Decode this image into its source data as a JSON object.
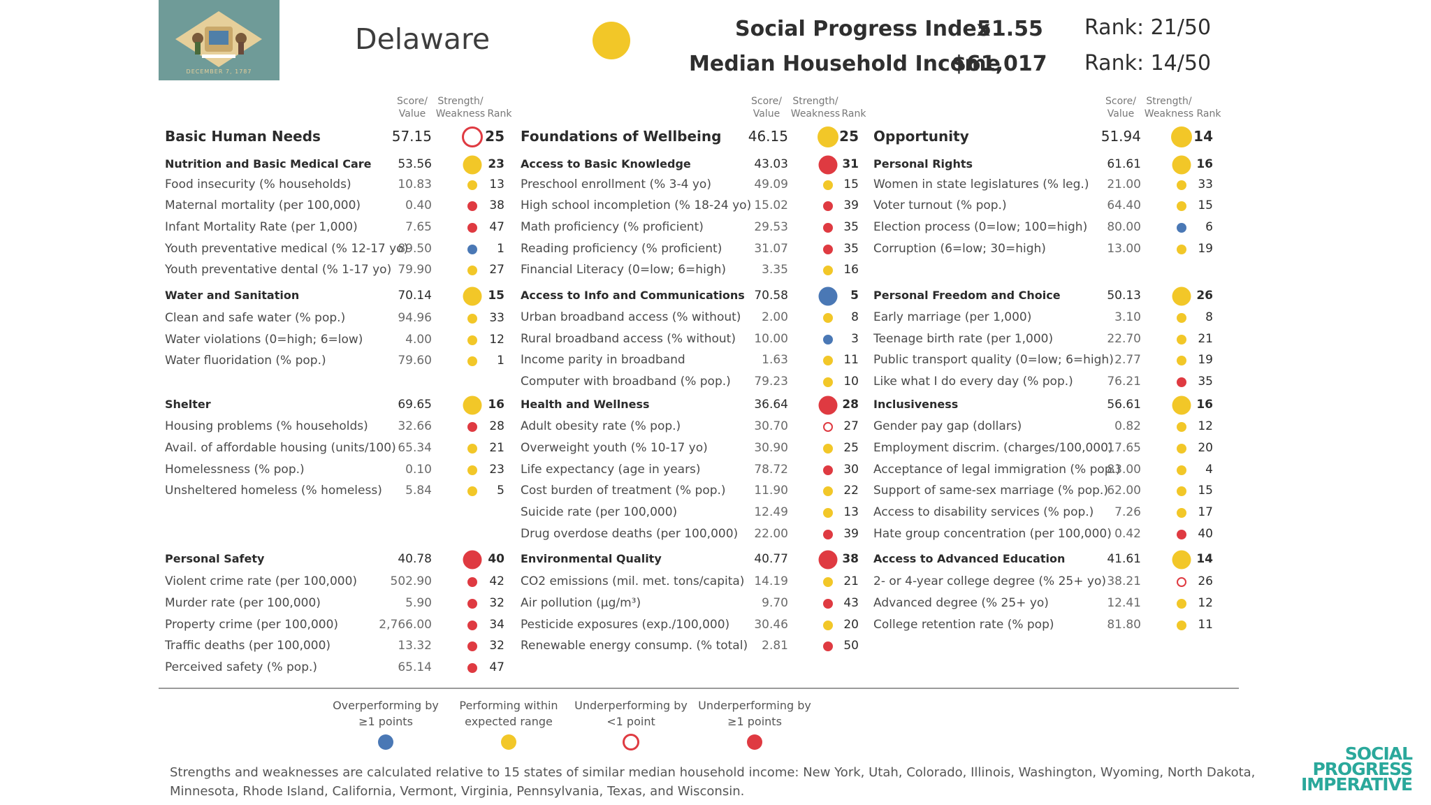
{
  "header": {
    "state": "Delaware",
    "spi_label": "Social Progress Index",
    "spi_score": "51.55",
    "spi_rank": "Rank: 21/50",
    "income_label": "Median Household Income",
    "income_value": "$61,017",
    "income_rank": "Rank: 14/50",
    "flag_year": "DECEMBER 7, 1787"
  },
  "column_headers": {
    "score": [
      "Score/",
      "Value"
    ],
    "strength": [
      "Strength/",
      "Weakness"
    ],
    "rank": "Rank"
  },
  "colors": {
    "blue": "#4a78b5",
    "yellow": "#f2c728",
    "red": "#df3a41"
  },
  "columns": [
    {
      "rows": [
        {
          "type": "dim",
          "label": "Basic Human Needs",
          "value": "57.15",
          "status": "ring",
          "rank": "25"
        },
        {
          "type": "sec",
          "label": "Nutrition and Basic Medical Care",
          "value": "53.56",
          "status": "yellow",
          "rank": "23"
        },
        {
          "type": "ind",
          "label": "Food insecurity (% households)",
          "value": "10.83",
          "status": "yellow",
          "rank": "13"
        },
        {
          "type": "ind",
          "label": "Maternal mortality (per 100,000)",
          "value": "0.40",
          "status": "red",
          "rank": "38"
        },
        {
          "type": "ind",
          "label": "Infant Mortality Rate (per 1,000)",
          "value": "7.65",
          "status": "red",
          "rank": "47"
        },
        {
          "type": "ind",
          "label": "Youth preventative medical (% 12-17 yo)",
          "value": "89.50",
          "status": "blue",
          "rank": "1"
        },
        {
          "type": "ind",
          "label": "Youth preventative dental (% 1-17 yo)",
          "value": "79.90",
          "status": "yellow",
          "rank": "27"
        },
        {
          "type": "sec",
          "label": "Water and Sanitation",
          "value": "70.14",
          "status": "yellow",
          "rank": "15"
        },
        {
          "type": "ind",
          "label": "Clean and safe water (% pop.)",
          "value": "94.96",
          "status": "yellow",
          "rank": "33"
        },
        {
          "type": "ind",
          "label": "Water violations (0=high; 6=low)",
          "value": "4.00",
          "status": "yellow",
          "rank": "12"
        },
        {
          "type": "ind",
          "label": "Water fluoridation (% pop.)",
          "value": "79.60",
          "status": "yellow",
          "rank": "1"
        },
        {
          "type": "sec",
          "label": "Shelter",
          "value": "69.65",
          "status": "yellow",
          "rank": "16"
        },
        {
          "type": "ind",
          "label": "Housing problems (% households)",
          "value": "32.66",
          "status": "red",
          "rank": "28"
        },
        {
          "type": "ind",
          "label": "Avail. of affordable housing (units/100)",
          "value": "65.34",
          "status": "yellow",
          "rank": "21"
        },
        {
          "type": "ind",
          "label": "Homelessness (% pop.)",
          "value": "0.10",
          "status": "yellow",
          "rank": "23"
        },
        {
          "type": "ind",
          "label": "Unsheltered homeless (% homeless)",
          "value": "5.84",
          "status": "yellow",
          "rank": "5"
        },
        {
          "type": "sec",
          "label": "Personal Safety",
          "value": "40.78",
          "status": "red",
          "rank": "40"
        },
        {
          "type": "ind",
          "label": "Violent crime rate (per 100,000)",
          "value": "502.90",
          "status": "red",
          "rank": "42"
        },
        {
          "type": "ind",
          "label": "Murder rate (per 100,000)",
          "value": "5.90",
          "status": "red",
          "rank": "32"
        },
        {
          "type": "ind",
          "label": "Property crime (per 100,000)",
          "value": "2,766.00",
          "status": "red",
          "rank": "34"
        },
        {
          "type": "ind",
          "label": "Traffic deaths (per 100,000)",
          "value": "13.32",
          "status": "red",
          "rank": "32"
        },
        {
          "type": "ind",
          "label": "Perceived safety (% pop.)",
          "value": "65.14",
          "status": "red",
          "rank": "47"
        }
      ]
    },
    {
      "rows": [
        {
          "type": "dim",
          "label": "Foundations of Wellbeing",
          "value": "46.15",
          "status": "yellow",
          "rank": "25"
        },
        {
          "type": "sec",
          "label": "Access to Basic Knowledge",
          "value": "43.03",
          "status": "red",
          "rank": "31"
        },
        {
          "type": "ind",
          "label": "Preschool enrollment (% 3-4 yo)",
          "value": "49.09",
          "status": "yellow",
          "rank": "15"
        },
        {
          "type": "ind",
          "label": "High school incompletion (% 18-24 yo)",
          "value": "15.02",
          "status": "red",
          "rank": "39"
        },
        {
          "type": "ind",
          "label": "Math proficiency (% proficient)",
          "value": "29.53",
          "status": "red",
          "rank": "35"
        },
        {
          "type": "ind",
          "label": "Reading proficiency (% proficient)",
          "value": "31.07",
          "status": "red",
          "rank": "35"
        },
        {
          "type": "ind",
          "label": "Financial Literacy (0=low; 6=high)",
          "value": "3.35",
          "status": "yellow",
          "rank": "16"
        },
        {
          "type": "sec",
          "label": "Access to Info and Communications",
          "value": "70.58",
          "status": "blue",
          "rank": "5"
        },
        {
          "type": "ind",
          "label": "Urban broadband access (% without)",
          "value": "2.00",
          "status": "yellow",
          "rank": "8"
        },
        {
          "type": "ind",
          "label": "Rural broadband access (% without)",
          "value": "10.00",
          "status": "blue",
          "rank": "3"
        },
        {
          "type": "ind",
          "label": "Income parity in broadband",
          "value": "1.63",
          "status": "yellow",
          "rank": "11"
        },
        {
          "type": "ind",
          "label": "Computer with broadband (% pop.)",
          "value": "79.23",
          "status": "yellow",
          "rank": "10"
        },
        {
          "type": "sec",
          "label": "Health and Wellness",
          "value": "36.64",
          "status": "red",
          "rank": "28"
        },
        {
          "type": "ind",
          "label": "Adult obesity rate (% pop.)",
          "value": "30.70",
          "status": "ring",
          "rank": "27"
        },
        {
          "type": "ind",
          "label": "Overweight youth (% 10-17 yo)",
          "value": "30.90",
          "status": "yellow",
          "rank": "25"
        },
        {
          "type": "ind",
          "label": "Life expectancy (age in years)",
          "value": "78.72",
          "status": "red",
          "rank": "30"
        },
        {
          "type": "ind",
          "label": "Cost burden of treatment (% pop.)",
          "value": "11.90",
          "status": "yellow",
          "rank": "22"
        },
        {
          "type": "ind",
          "label": "Suicide rate (per 100,000)",
          "value": "12.49",
          "status": "yellow",
          "rank": "13"
        },
        {
          "type": "ind",
          "label": "Drug overdose deaths (per 100,000)",
          "value": "22.00",
          "status": "red",
          "rank": "39"
        },
        {
          "type": "sec",
          "label": "Environmental Quality",
          "value": "40.77",
          "status": "red",
          "rank": "38"
        },
        {
          "type": "ind",
          "label": "CO2 emissions (mil. met. tons/capita)",
          "value": "14.19",
          "status": "yellow",
          "rank": "21"
        },
        {
          "type": "ind",
          "label": "Air pollution (µg/m³)",
          "value": "9.70",
          "status": "red",
          "rank": "43"
        },
        {
          "type": "ind",
          "label": "Pesticide exposures (exp./100,000)",
          "value": "30.46",
          "status": "yellow",
          "rank": "20"
        },
        {
          "type": "ind",
          "label": "Renewable energy consump. (% total)",
          "value": "2.81",
          "status": "red",
          "rank": "50"
        }
      ]
    },
    {
      "rows": [
        {
          "type": "dim",
          "label": "Opportunity",
          "value": "51.94",
          "status": "yellow",
          "rank": "14"
        },
        {
          "type": "sec",
          "label": "Personal Rights",
          "value": "61.61",
          "status": "yellow",
          "rank": "16"
        },
        {
          "type": "ind",
          "label": "Women in state legislatures (% leg.)",
          "value": "21.00",
          "status": "yellow",
          "rank": "33"
        },
        {
          "type": "ind",
          "label": "Voter turnout (% pop.)",
          "value": "64.40",
          "status": "yellow",
          "rank": "15"
        },
        {
          "type": "ind",
          "label": "Election process (0=low; 100=high)",
          "value": "80.00",
          "status": "blue",
          "rank": "6"
        },
        {
          "type": "ind",
          "label": "Corruption (6=low; 30=high)",
          "value": "13.00",
          "status": "yellow",
          "rank": "19"
        },
        {
          "type": "sec",
          "label": "Personal Freedom and Choice",
          "value": "50.13",
          "status": "yellow",
          "rank": "26"
        },
        {
          "type": "ind",
          "label": "Early marriage (per 1,000)",
          "value": "3.10",
          "status": "yellow",
          "rank": "8"
        },
        {
          "type": "ind",
          "label": "Teenage birth rate (per 1,000)",
          "value": "22.70",
          "status": "yellow",
          "rank": "21"
        },
        {
          "type": "ind",
          "label": "Public transport quality (0=low; 6=high)",
          "value": "2.77",
          "status": "yellow",
          "rank": "19"
        },
        {
          "type": "ind",
          "label": "Like what I do every day (% pop.)",
          "value": "76.21",
          "status": "red",
          "rank": "35"
        },
        {
          "type": "sec",
          "label": "Inclusiveness",
          "value": "56.61",
          "status": "yellow",
          "rank": "16"
        },
        {
          "type": "ind",
          "label": "Gender pay gap (dollars)",
          "value": "0.82",
          "status": "yellow",
          "rank": "12"
        },
        {
          "type": "ind",
          "label": "Employment discrim. (charges/100,000)",
          "value": "17.65",
          "status": "yellow",
          "rank": "20"
        },
        {
          "type": "ind",
          "label": "Acceptance of legal immigration (% pop.)",
          "value": "83.00",
          "status": "yellow",
          "rank": "4"
        },
        {
          "type": "ind",
          "label": "Support of same-sex marriage (% pop.)",
          "value": "62.00",
          "status": "yellow",
          "rank": "15"
        },
        {
          "type": "ind",
          "label": "Access to disability services (% pop.)",
          "value": "7.26",
          "status": "yellow",
          "rank": "17"
        },
        {
          "type": "ind",
          "label": "Hate group concentration (per 100,000)",
          "value": "0.42",
          "status": "red",
          "rank": "40"
        },
        {
          "type": "sec",
          "label": "Access to Advanced Education",
          "value": "41.61",
          "status": "yellow",
          "rank": "14"
        },
        {
          "type": "ind",
          "label": "2- or 4-year college degree (% 25+ yo)",
          "value": "38.21",
          "status": "ring",
          "rank": "26"
        },
        {
          "type": "ind",
          "label": "Advanced degree (% 25+ yo)",
          "value": "12.41",
          "status": "yellow",
          "rank": "12"
        },
        {
          "type": "ind",
          "label": "College retention rate (% pop)",
          "value": "81.80",
          "status": "yellow",
          "rank": "11"
        }
      ]
    }
  ],
  "legend": [
    {
      "label": "Overperforming by\n≥1 points",
      "status": "blue"
    },
    {
      "label": "Performing within\nexpected range",
      "status": "yellow"
    },
    {
      "label": "Underperforming by\n<1 point",
      "status": "ring"
    },
    {
      "label": "Underperforming by\n≥1 points",
      "status": "red"
    }
  ],
  "footnote": "Strengths and weaknesses are calculated relative to 15 states of similar median household income: New York, Utah, Colorado, Illinois, Washington, Wyoming, North Dakota, Minnesota, Rhode Island, California, Vermont, Virginia, Pennsylvania, Texas, and Wisconsin.",
  "logo": [
    "SOCIAL",
    "PROGRESS",
    "IMPERATIVE"
  ]
}
